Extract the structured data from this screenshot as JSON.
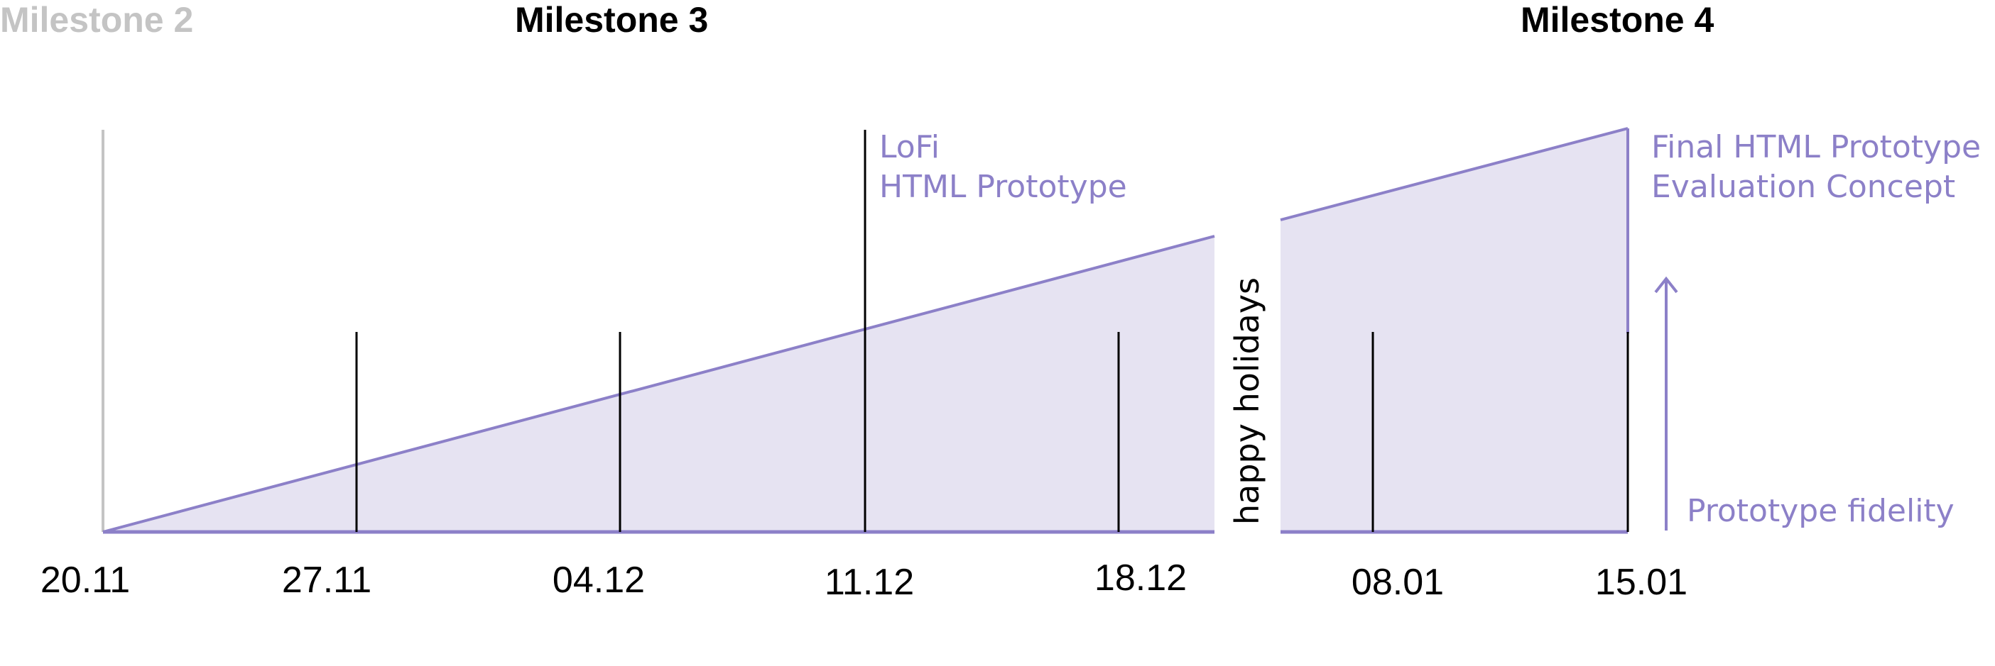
{
  "milestones": {
    "m2": "Milestone 2",
    "m3": "Milestone 3",
    "m4": "Milestone 4"
  },
  "dates": [
    "20.11",
    "27.11",
    "04.12",
    "11.12",
    "18.12",
    "08.01",
    "15.01"
  ],
  "annotations": {
    "lofi_line1": "LoFi",
    "lofi_line2": "HTML Prototype",
    "final_line1": "Final HTML Prototype",
    "final_line2": "Evaluation Concept",
    "fidelity": "Prototype fidelity",
    "break": "happy holidays"
  },
  "colors": {
    "accent": "#8c80c8",
    "fill": "#e6e3f2",
    "muted": "#c4c4c4",
    "tick": "#000000"
  }
}
